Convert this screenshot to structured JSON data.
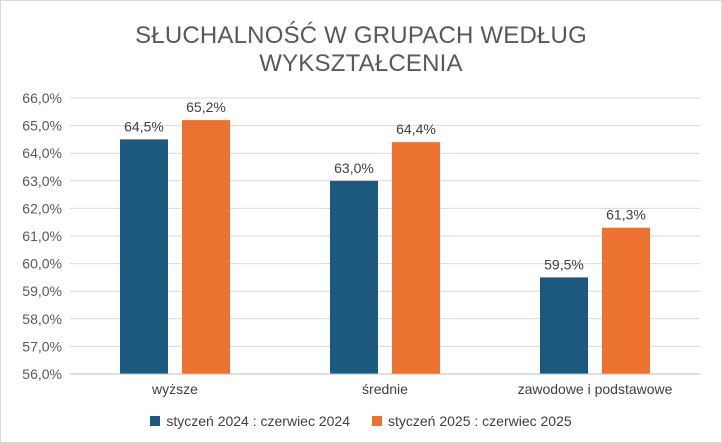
{
  "chart_data": {
    "type": "bar",
    "title_lines": [
      "SŁUCHALNOŚĆ W GRUPACH WEDŁUG",
      "WYKSZTAŁCENIA"
    ],
    "categories": [
      "wyższe",
      "średnie",
      "zawodowe i podstawowe"
    ],
    "series": [
      {
        "name": "styczeń 2024 : czerwiec 2024",
        "color": "#1b5a7e",
        "values": [
          64.5,
          63.0,
          59.5
        ],
        "labels": [
          "64,5%",
          "63,0%",
          "59,5%"
        ]
      },
      {
        "name": "styczeń 2025 : czerwiec 2025",
        "color": "#ec7230",
        "values": [
          65.2,
          64.4,
          61.3
        ],
        "labels": [
          "65,2%",
          "64,4%",
          "61,3%"
        ]
      }
    ],
    "ylim": [
      56,
      66
    ],
    "yticks": [
      56,
      57,
      58,
      59,
      60,
      61,
      62,
      63,
      64,
      65,
      66
    ],
    "ytick_labels": [
      "56,0%",
      "57,0%",
      "58,0%",
      "59,0%",
      "60,0%",
      "61,0%",
      "62,0%",
      "63,0%",
      "64,0%",
      "65,0%",
      "66,0%"
    ],
    "xlabel": "",
    "ylabel": "",
    "grid": true,
    "legend_position": "bottom"
  }
}
